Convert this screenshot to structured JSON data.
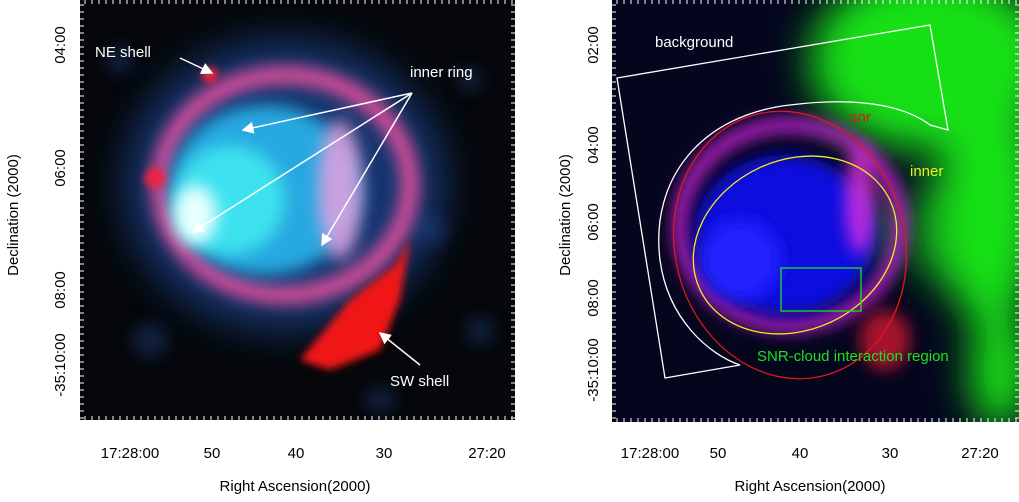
{
  "panels": [
    {
      "x_axis_label": "Right Ascension(2000)",
      "y_axis_label": "Declination (2000)",
      "x_tick_labels": [
        "17:28:00",
        "50",
        "40",
        "30",
        "27:20"
      ],
      "y_tick_labels": [
        "04:00",
        "06:00",
        "08:00",
        "-35:10:00"
      ],
      "annotations": [
        "NE shell",
        "inner ring",
        "SW shell"
      ]
    },
    {
      "x_axis_label": "Right Ascension(2000)",
      "y_axis_label": "Declination (2000)",
      "x_tick_labels": [
        "17:28:00",
        "50",
        "40",
        "30",
        "27:20"
      ],
      "y_tick_labels": [
        "02:00",
        "04:00",
        "06:00",
        "08:00",
        "-35:10:00"
      ],
      "annotations": [
        "background",
        "snr",
        "inner",
        "SNR-cloud interaction region"
      ]
    }
  ]
}
